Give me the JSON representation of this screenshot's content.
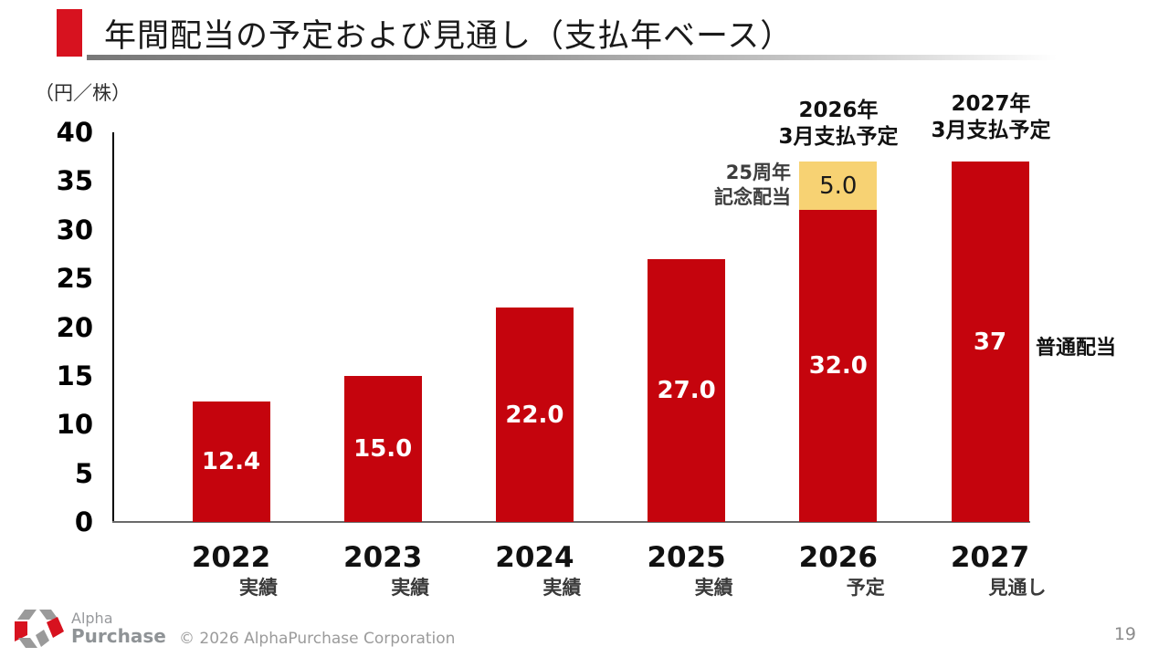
{
  "slide": {
    "title": "年間配当の予定および見通し（支払年ベース）",
    "page_number": "19",
    "copyright": "© 2026 AlphaPurchase Corporation",
    "logo": {
      "line1": "Alpha",
      "line2": "Purchase"
    }
  },
  "colors": {
    "accent_red": "#d7121f",
    "bar_red": "#c5040d",
    "special_yellow": "#f7d273",
    "axis_gray": "#6a6a6a"
  },
  "chart_data": {
    "type": "bar",
    "stacked": true,
    "title": "年間配当の予定および見通し（支払年ベース）",
    "unit_label": "（円／株）",
    "ylim": [
      0,
      40
    ],
    "yticks": [
      0,
      5,
      10,
      15,
      20,
      25,
      30,
      35,
      40
    ],
    "grid": false,
    "legend": false,
    "categories": [
      {
        "label": "2022",
        "sublabel": "実績"
      },
      {
        "label": "2023",
        "sublabel": "実績"
      },
      {
        "label": "2024",
        "sublabel": "実績"
      },
      {
        "label": "2025",
        "sublabel": "実績"
      },
      {
        "label": "2026",
        "sublabel": "予定"
      },
      {
        "label": "2027",
        "sublabel": "見通し"
      }
    ],
    "series": [
      {
        "name": "普通配当",
        "values": [
          12.4,
          15.0,
          22.0,
          27.0,
          32.0,
          37
        ],
        "labels": [
          "12.4",
          "15.0",
          "22.0",
          "27.0",
          "32.0",
          "37"
        ],
        "color": "#c5040d",
        "label_color": "#ffffff"
      },
      {
        "name": "25周年記念配当",
        "values": [
          0,
          0,
          0,
          0,
          5.0,
          0
        ],
        "labels": [
          "",
          "",
          "",
          "",
          "5.0",
          ""
        ],
        "color": "#f7d273",
        "label_color": "#1a1a1a"
      }
    ],
    "annotations": [
      {
        "id": "pay2026",
        "line1": "2026年",
        "line2": "3月支払予定"
      },
      {
        "id": "pay2027",
        "line1": "2027年",
        "line2": "3月支払予定"
      },
      {
        "id": "anniversary",
        "line1": "25周年",
        "line2": "記念配当"
      },
      {
        "id": "ordinary",
        "line1": "普通配当"
      }
    ]
  }
}
